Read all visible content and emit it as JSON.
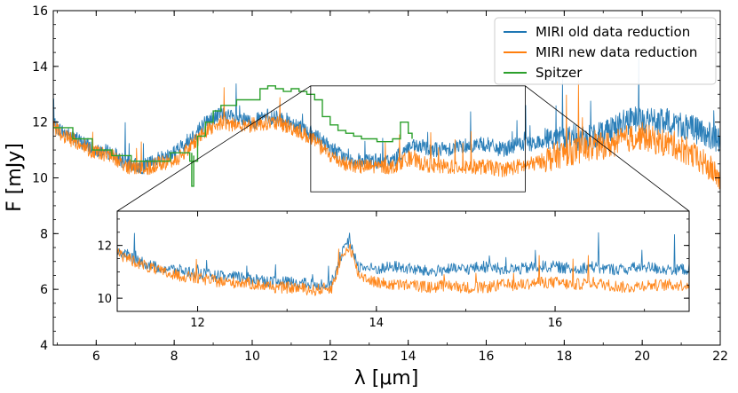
{
  "chart_data": [
    {
      "panel": "main",
      "type": "line",
      "title": "",
      "xlabel": "λ [μm]",
      "ylabel": "F [mJy]",
      "xlim": [
        4.9,
        22.0
      ],
      "ylim": [
        4,
        16
      ],
      "xticks": [
        "6",
        "8",
        "10",
        "12",
        "14",
        "16",
        "18",
        "20",
        "22"
      ],
      "yticks": [
        "4",
        "6",
        "8",
        "10",
        "12",
        "14",
        "16"
      ],
      "grid": false,
      "legend_position": "top-right",
      "zoom_box": {
        "x": [
          11.5,
          17.0
        ],
        "y": [
          9.5,
          13.3
        ]
      },
      "series": [
        {
          "name": "MIRI old data reduction",
          "color": "#1f77b4",
          "x": [
            4.9,
            5.2,
            5.6,
            6.0,
            6.4,
            6.8,
            7.2,
            7.6,
            8.0,
            8.4,
            8.8,
            9.2,
            9.6,
            10.0,
            10.4,
            10.8,
            11.2,
            11.6,
            12.0,
            12.4,
            12.8,
            13.2,
            13.6,
            14.0,
            14.4,
            14.8,
            15.2,
            15.6,
            16.0,
            16.4,
            16.8,
            17.2,
            17.6,
            18.0,
            18.4,
            18.8,
            19.2,
            19.6,
            20.0,
            20.4,
            20.8,
            21.2,
            21.6,
            22.0
          ],
          "y": [
            11.9,
            11.6,
            11.3,
            11.0,
            10.9,
            10.5,
            10.4,
            10.7,
            10.9,
            11.4,
            12.0,
            12.3,
            12.1,
            12.0,
            12.2,
            12.1,
            11.9,
            11.5,
            11.1,
            10.7,
            10.6,
            10.6,
            10.6,
            11.1,
            11.1,
            11.0,
            11.1,
            11.2,
            11.2,
            11.0,
            11.2,
            11.2,
            11.4,
            11.5,
            11.4,
            11.5,
            11.8,
            12.0,
            12.1,
            12.0,
            12.0,
            11.8,
            11.6,
            11.3
          ]
        },
        {
          "name": "MIRI new data reduction",
          "color": "#ff7f0e",
          "x": [
            4.9,
            5.2,
            5.6,
            6.0,
            6.4,
            6.8,
            7.2,
            7.6,
            8.0,
            8.4,
            8.8,
            9.2,
            9.6,
            10.0,
            10.4,
            10.8,
            11.2,
            11.6,
            12.0,
            12.4,
            12.8,
            13.2,
            13.6,
            14.0,
            14.4,
            14.8,
            15.2,
            15.6,
            16.0,
            16.4,
            16.8,
            17.2,
            17.6,
            18.0,
            18.4,
            18.8,
            19.2,
            19.6,
            20.0,
            20.4,
            20.8,
            21.2,
            21.6,
            22.0
          ],
          "y": [
            11.8,
            11.5,
            11.2,
            10.9,
            10.8,
            10.4,
            10.3,
            10.5,
            10.6,
            11.1,
            11.7,
            12.0,
            11.9,
            11.9,
            12.0,
            11.9,
            11.7,
            11.3,
            10.8,
            10.5,
            10.4,
            10.4,
            10.4,
            10.7,
            10.5,
            10.4,
            10.4,
            10.4,
            10.4,
            10.3,
            10.4,
            10.5,
            10.7,
            10.9,
            11.0,
            11.1,
            11.2,
            11.4,
            11.5,
            11.3,
            11.2,
            10.9,
            10.5,
            10.0
          ]
        },
        {
          "name": "Spitzer",
          "color": "#2ca02c",
          "x": [
            4.9,
            5.4,
            5.9,
            6.4,
            6.9,
            7.4,
            7.9,
            8.4,
            8.6,
            8.8,
            9.0,
            9.2,
            9.6,
            10.0,
            10.2,
            10.4,
            10.6,
            10.8,
            11.0,
            11.2,
            11.4,
            11.6,
            11.8,
            12.0,
            12.2,
            12.4,
            12.6,
            12.8,
            13.0,
            13.2,
            13.4,
            13.6,
            13.8,
            14.0,
            14.1
          ],
          "y": [
            11.8,
            11.4,
            11.0,
            10.8,
            10.6,
            10.6,
            10.9,
            10.6,
            11.5,
            12.0,
            12.4,
            12.6,
            12.8,
            12.8,
            13.2,
            13.3,
            13.2,
            13.1,
            13.2,
            13.1,
            13.0,
            12.8,
            12.2,
            11.9,
            11.7,
            11.6,
            11.5,
            11.4,
            11.4,
            11.3,
            11.3,
            11.4,
            12.0,
            11.6,
            11.4
          ]
        }
      ]
    },
    {
      "panel": "inset",
      "type": "line",
      "title": "",
      "xlabel": "",
      "ylabel": "",
      "xlim": [
        11.1,
        17.5
      ],
      "ylim": [
        9.5,
        13.3
      ],
      "xticks": [
        "12",
        "14",
        "16"
      ],
      "yticks": [
        "10",
        "12"
      ],
      "grid": false,
      "series": [
        {
          "name": "MIRI old data reduction",
          "color": "#1f77b4",
          "x": [
            11.1,
            11.3,
            11.5,
            11.7,
            11.9,
            12.1,
            12.3,
            12.5,
            12.7,
            12.9,
            13.1,
            13.3,
            13.5,
            13.6,
            13.7,
            13.8,
            14.0,
            14.2,
            14.4,
            14.6,
            14.8,
            15.0,
            15.2,
            15.4,
            15.6,
            15.8,
            16.0,
            16.2,
            16.4,
            16.6,
            16.8,
            17.0,
            17.2,
            17.5
          ],
          "y": [
            11.8,
            11.5,
            11.2,
            11.1,
            11.0,
            10.9,
            10.8,
            10.8,
            10.7,
            10.6,
            10.6,
            10.5,
            10.6,
            11.6,
            12.2,
            11.2,
            11.1,
            11.2,
            11.1,
            11.0,
            11.1,
            11.1,
            11.2,
            11.1,
            11.1,
            11.2,
            11.2,
            11.1,
            11.2,
            11.1,
            11.1,
            11.2,
            11.1,
            11.1
          ]
        },
        {
          "name": "MIRI new data reduction",
          "color": "#ff7f0e",
          "x": [
            11.1,
            11.3,
            11.5,
            11.7,
            11.9,
            12.1,
            12.3,
            12.5,
            12.7,
            12.9,
            13.1,
            13.3,
            13.5,
            13.6,
            13.7,
            13.8,
            14.0,
            14.2,
            14.4,
            14.6,
            14.8,
            15.0,
            15.2,
            15.4,
            15.6,
            15.8,
            16.0,
            16.2,
            16.4,
            16.6,
            16.8,
            17.0,
            17.2,
            17.5
          ],
          "y": [
            11.7,
            11.4,
            11.1,
            10.9,
            10.8,
            10.7,
            10.6,
            10.6,
            10.5,
            10.4,
            10.4,
            10.3,
            10.4,
            11.4,
            12.0,
            10.9,
            10.6,
            10.5,
            10.5,
            10.4,
            10.5,
            10.4,
            10.4,
            10.5,
            10.5,
            10.6,
            10.6,
            10.5,
            10.6,
            10.5,
            10.4,
            10.5,
            10.5,
            10.5
          ]
        }
      ]
    }
  ]
}
